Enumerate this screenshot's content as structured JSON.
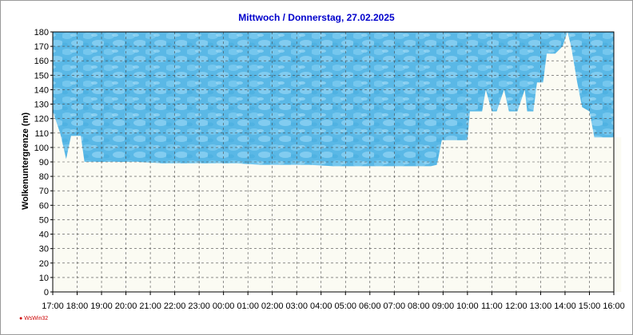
{
  "chart_data": {
    "type": "area",
    "title": "Mittwoch / Donnerstag, 27.02.2025",
    "ylabel": "Wolkenuntergrenze (m)",
    "xlabel": "",
    "ylim": [
      0,
      180
    ],
    "yticks": [
      0,
      10,
      20,
      30,
      40,
      50,
      60,
      70,
      80,
      90,
      100,
      110,
      120,
      130,
      140,
      150,
      160,
      170,
      180
    ],
    "xticks": [
      "17:00",
      "18:00",
      "19:00",
      "20:00",
      "21:00",
      "22:00",
      "23:00",
      "00:00",
      "01:00",
      "02:00",
      "03:00",
      "04:00",
      "05:00",
      "06:00",
      "07:00",
      "08:00",
      "09:00",
      "10:00",
      "11:00",
      "12:00",
      "13:00",
      "14:00",
      "15:00",
      "16:00"
    ],
    "x": [
      0,
      0.3,
      0.55,
      0.75,
      1.15,
      1.3,
      1.5,
      2.5,
      3.5,
      4.5,
      5.5,
      6.5,
      7.5,
      8.5,
      9.5,
      10.5,
      11.5,
      12.5,
      13.5,
      14.5,
      15.5,
      15.75,
      15.95,
      16.1,
      17.0,
      17.1,
      17.6,
      17.75,
      18.0,
      18.2,
      18.5,
      18.7,
      19.0,
      19.05,
      19.35,
      19.45,
      19.7,
      19.85,
      20.1,
      20.25,
      20.5,
      20.6,
      20.9,
      21.1,
      21.25,
      21.5,
      21.7,
      22.0,
      22.2,
      22.5,
      23.0,
      23.3
    ],
    "values": [
      125,
      110,
      92,
      108,
      108,
      90,
      90,
      90,
      90,
      89,
      89,
      89,
      89,
      88,
      88,
      88,
      87,
      87,
      87,
      87,
      87,
      88,
      105,
      105,
      105,
      125,
      125,
      140,
      125,
      125,
      140,
      125,
      125,
      125,
      140,
      125,
      125,
      145,
      145,
      165,
      165,
      165,
      170,
      183,
      170,
      145,
      128,
      125,
      107,
      107,
      107,
      107
    ],
    "grid": true,
    "colors": {
      "sky": "#5ab8e6",
      "ground": "#fbfbf3",
      "grid": "#4a4a4a"
    }
  },
  "footer": {
    "credit": "WsWin32"
  }
}
